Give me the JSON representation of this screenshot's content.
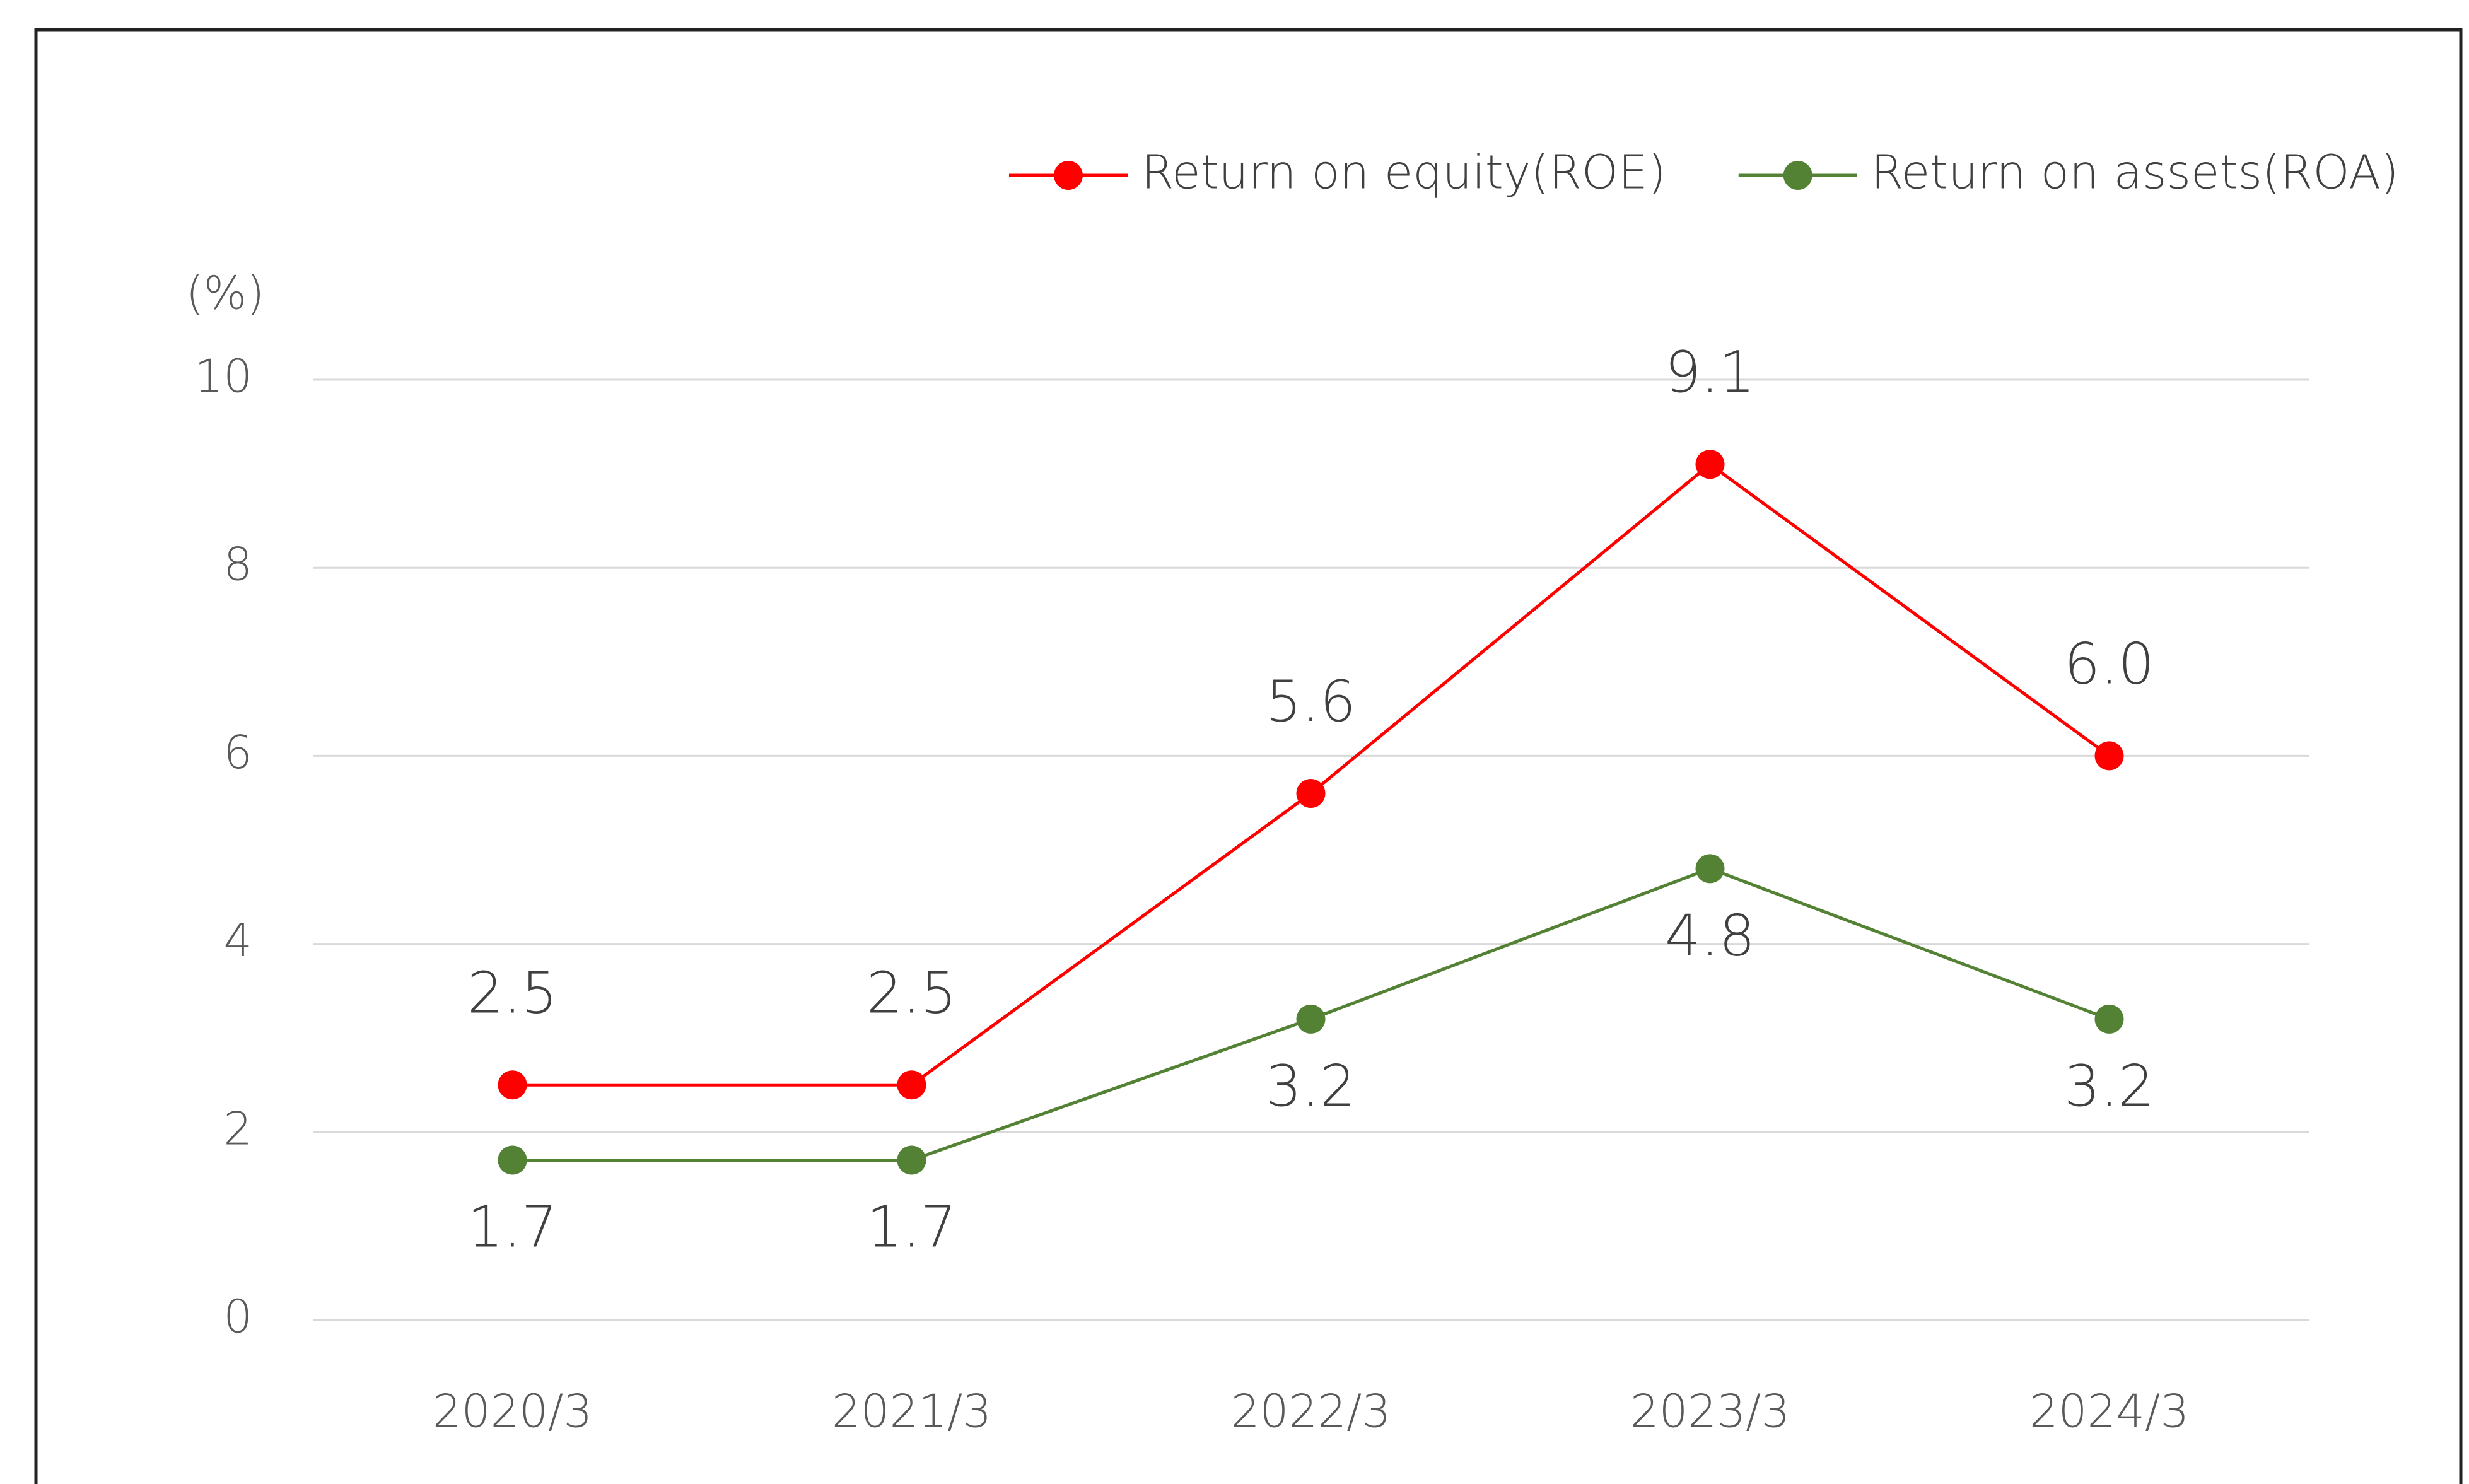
{
  "chart_data": {
    "type": "line",
    "y_label": "(%)",
    "categories": [
      "2020/3",
      "2021/3",
      "2022/3",
      "2023/3",
      "2024/3"
    ],
    "series": [
      {
        "name": "Return on equity(ROE)",
        "color": "#ff0000",
        "values": [
          2.5,
          2.5,
          5.6,
          9.1,
          6
        ],
        "value_labels": [
          "2.5",
          "2.5",
          "5.6",
          "9.1",
          "6.0"
        ],
        "label_position": "above"
      },
      {
        "name": "Return on assets(ROA)",
        "color": "#548235",
        "values": [
          1.7,
          1.7,
          3.2,
          4.8,
          3.2
        ],
        "value_labels": [
          "1.7",
          "1.7",
          "3.2",
          "4.8",
          "3.2"
        ],
        "label_position": "below"
      }
    ],
    "ylim": [
      0,
      10
    ],
    "yticks": [
      0,
      2,
      4,
      6,
      8,
      10
    ],
    "grid": true,
    "legend": "top-right"
  }
}
